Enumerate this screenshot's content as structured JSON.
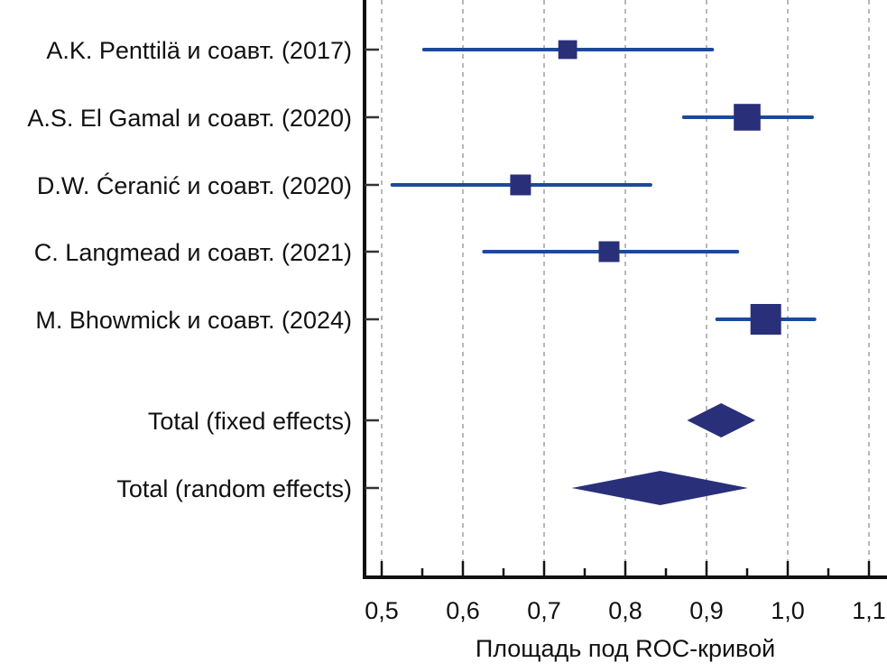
{
  "chart_data": {
    "type": "forest",
    "title": "",
    "xlabel": "Площадь под ROC-кривой",
    "ylabel": "",
    "xlim": [
      0.5,
      1.1
    ],
    "x_ticks": [
      "0,5",
      "0,6",
      "0,7",
      "0,8",
      "0,9",
      "1,0",
      "1,1"
    ],
    "x_tick_values": [
      0.5,
      0.6,
      0.7,
      0.8,
      0.9,
      1.0,
      1.1
    ],
    "grid": true,
    "colors": {
      "ci": "#1b4a9c",
      "marker": "#2a2f7a",
      "axis": "#111111",
      "grid": "#a0a0a0"
    },
    "studies": [
      {
        "label": "A.K. Penttilä и соавт. (2017)",
        "auc": 0.729,
        "ci_low": 0.552,
        "ci_high": 0.907,
        "weight": 0.4
      },
      {
        "label": "A.S. El Gamal и соавт. (2020)",
        "auc": 0.95,
        "ci_low": 0.872,
        "ci_high": 1.03,
        "weight": 0.8
      },
      {
        "label": "D.W. Ćeranić и соавт. (2020)",
        "auc": 0.671,
        "ci_low": 0.513,
        "ci_high": 0.831,
        "weight": 0.5
      },
      {
        "label": "C. Langmead и соавт. (2021)",
        "auc": 0.78,
        "ci_low": 0.626,
        "ci_high": 0.938,
        "weight": 0.5
      },
      {
        "label": "M. Bhowmick и соавт. (2024)",
        "auc": 0.973,
        "ci_low": 0.913,
        "ci_high": 1.033,
        "weight": 1.0
      }
    ],
    "pooled": [
      {
        "label": "Total (fixed effects)",
        "auc": 0.918,
        "ci_low": 0.876,
        "ci_high": 0.96
      },
      {
        "label": "Total (random effects)",
        "auc": 0.843,
        "ci_low": 0.734,
        "ci_high": 0.951
      }
    ]
  }
}
